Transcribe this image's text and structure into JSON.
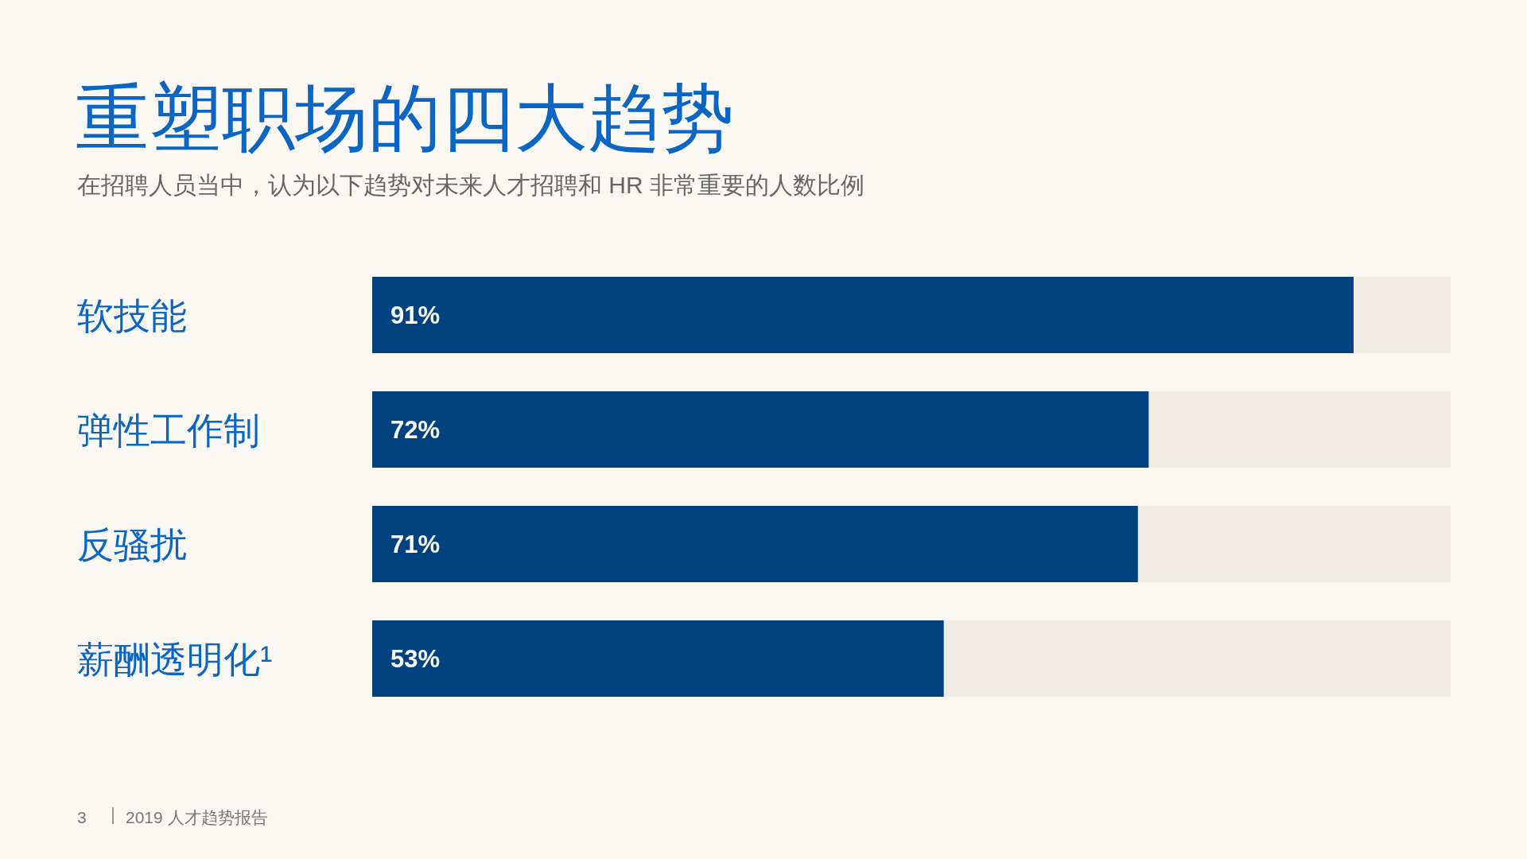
{
  "chart_data": {
    "type": "bar",
    "orientation": "horizontal",
    "title": "重塑职场的四大趋势",
    "subtitle": "在招聘人员当中，认为以下趋势对未来人才招聘和 HR 非常重要的人数比例",
    "categories": [
      "软技能",
      "弹性工作制",
      "反骚扰",
      "薪酬透明化¹"
    ],
    "values": [
      91,
      72,
      71,
      53
    ],
    "value_labels": [
      "91%",
      "72%",
      "71%",
      "53%"
    ],
    "color": "#00417f",
    "xlim": [
      0,
      100
    ],
    "annotations": [
      "3",
      "2019 人才趋势报告"
    ]
  }
}
